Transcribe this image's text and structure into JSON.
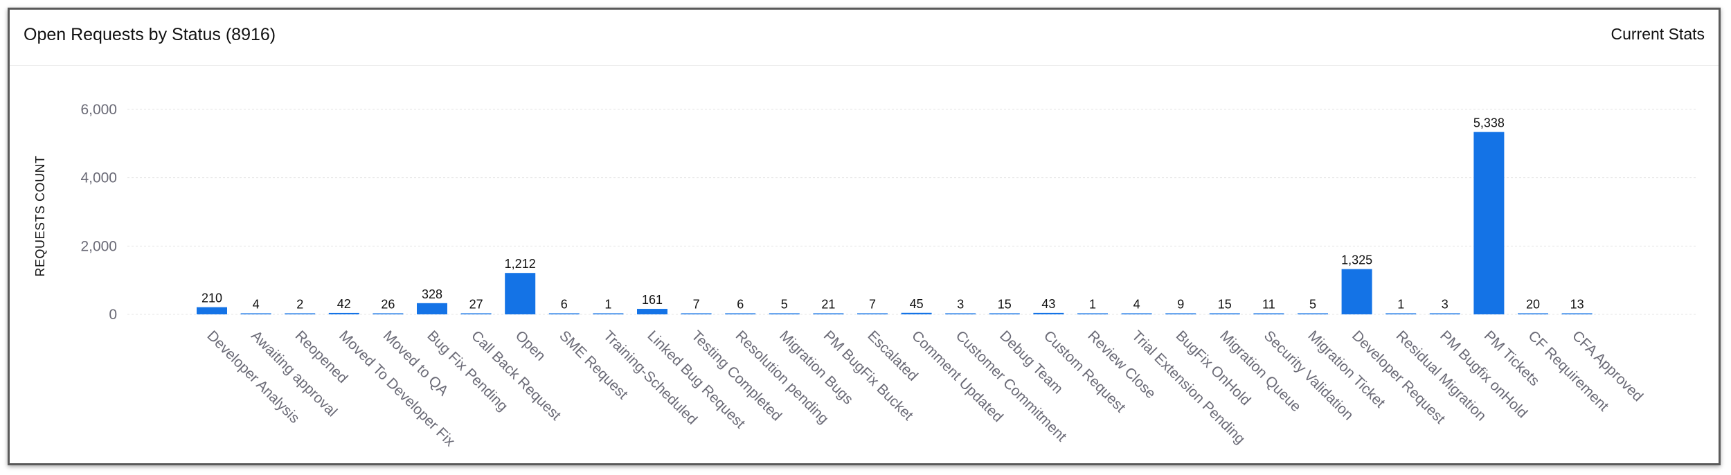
{
  "header": {
    "title": "Open Requests by Status (8916)",
    "stats_label": "Current Stats"
  },
  "colors": {
    "bar": "#1473e6",
    "grid": "#e4e4e4"
  },
  "chart_data": {
    "type": "bar",
    "ylabel": "REQUESTS COUNT",
    "xlabel": "",
    "ylim": [
      0,
      6000
    ],
    "yticks": [
      0,
      2000,
      4000,
      6000
    ],
    "ytick_labels": [
      "0",
      "2,000",
      "4,000",
      "6,000"
    ],
    "grid": true,
    "categories": [
      "Developer Analysis",
      "Awaiting approval",
      "Reopened",
      "Moved To Developer Fix",
      "Moved to QA",
      "Bug Fix Pending",
      "Call Back Request",
      "Open",
      "SME Request",
      "Training-Scheduled",
      "Linked Bug Request",
      "Testing Completed",
      "Resolution pending",
      "Migration Bugs",
      "PM BugFix Bucket",
      "Escalated",
      "Comment Updated",
      "Customer Commitment",
      "Debug Team",
      "Custom Request",
      "Review Close",
      "Trial Extension Pending",
      "BugFix OnHold",
      "Migration Queue",
      "Security Validation",
      "Migration Ticket",
      "Developer Request",
      "Residual Migration",
      "PM Bugfix onHold",
      "PM Tickets",
      "CF Requirement",
      "CFA Approved"
    ],
    "values": [
      210,
      4,
      2,
      42,
      26,
      328,
      27,
      1212,
      6,
      1,
      161,
      7,
      6,
      5,
      21,
      7,
      45,
      3,
      15,
      43,
      1,
      4,
      9,
      15,
      11,
      5,
      1325,
      1,
      3,
      5338,
      20,
      13
    ],
    "value_labels": [
      "210",
      "4",
      "2",
      "42",
      "26",
      "328",
      "27",
      "1,212",
      "6",
      "1",
      "161",
      "7",
      "6",
      "5",
      "21",
      "7",
      "45",
      "3",
      "15",
      "43",
      "1",
      "4",
      "9",
      "15",
      "11",
      "5",
      "1,325",
      "1",
      "3",
      "5,338",
      "20",
      "13"
    ]
  }
}
